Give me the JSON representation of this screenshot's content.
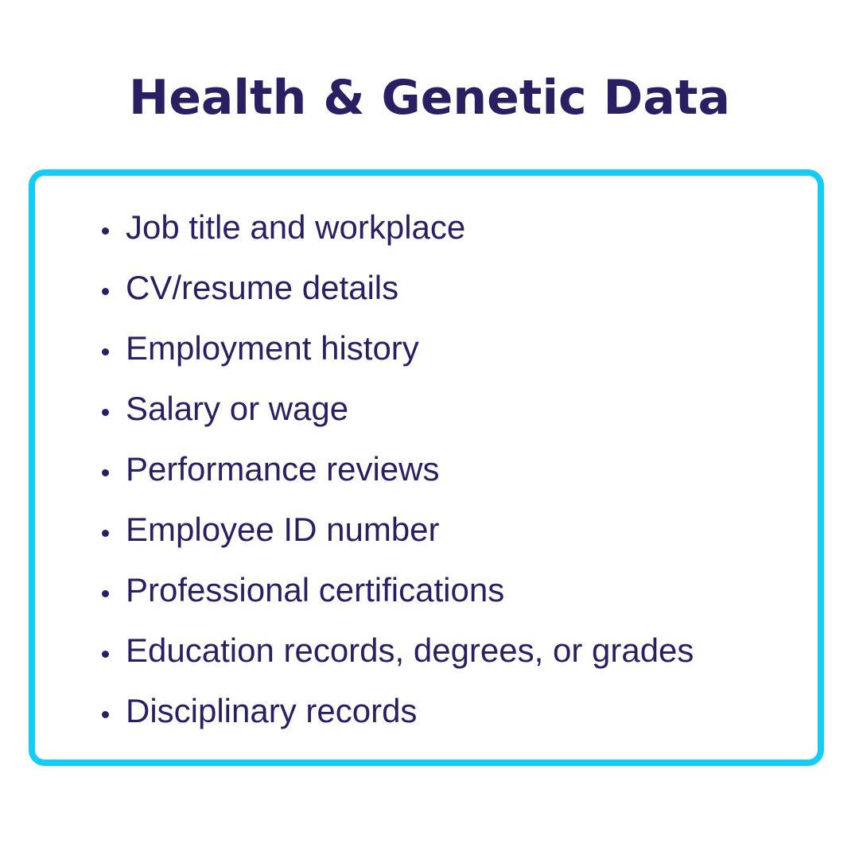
{
  "title": "Health & Genetic Data",
  "items": [
    "Job title and workplace",
    "CV/resume details",
    "Employment history",
    "Salary or wage",
    "Performance reviews",
    "Employee ID number",
    "Professional certifications",
    "Education records, degrees, or grades",
    "Disciplinary records"
  ],
  "colors": {
    "text": "#2a1f63",
    "border": "#13cdf7"
  }
}
